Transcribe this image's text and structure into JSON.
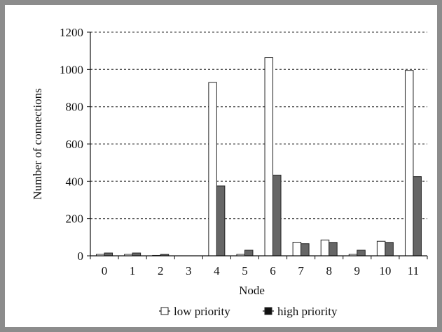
{
  "chart_data": {
    "type": "bar",
    "title": "",
    "xlabel": "Node",
    "ylabel": "Number of connections",
    "categories": [
      "0",
      "1",
      "2",
      "3",
      "4",
      "5",
      "6",
      "7",
      "8",
      "9",
      "10",
      "11"
    ],
    "ylim": [
      0,
      1200
    ],
    "yticks": [
      0,
      200,
      400,
      600,
      800,
      1000,
      1200
    ],
    "grid": true,
    "legend_position": "bottom",
    "series": [
      {
        "name": "low priority",
        "color": "#ffffff",
        "values": [
          8,
          8,
          2,
          0,
          930,
          8,
          1063,
          73,
          85,
          8,
          78,
          995
        ]
      },
      {
        "name": "high priority",
        "color": "#666666",
        "values": [
          15,
          15,
          8,
          0,
          375,
          30,
          433,
          65,
          72,
          30,
          72,
          425
        ]
      }
    ]
  }
}
